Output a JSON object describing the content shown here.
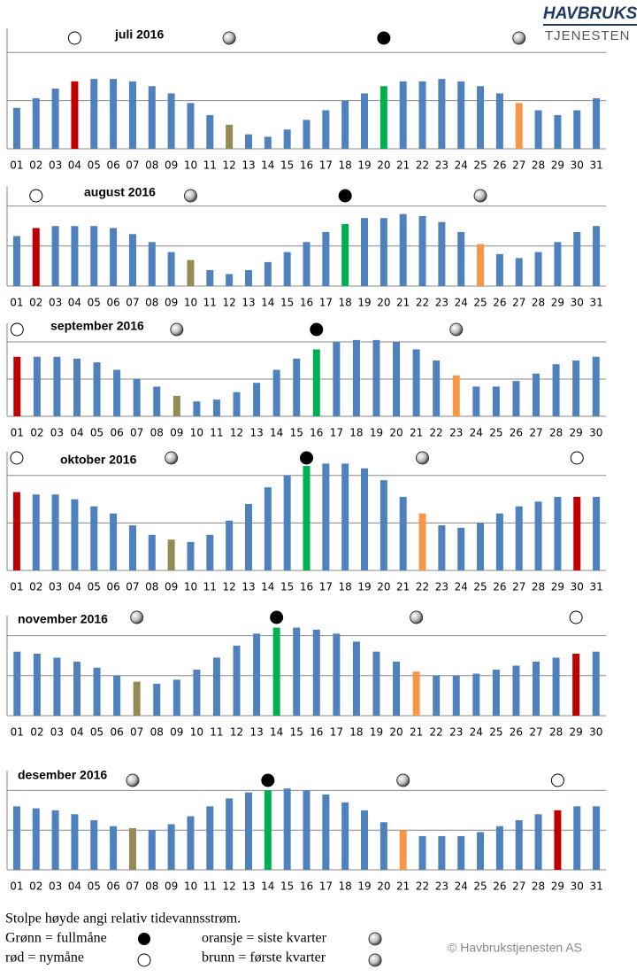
{
  "logo": [
    "HAVBRUKS",
    "TJENESTEN"
  ],
  "copyright": "© Havbrukstjenesten AS",
  "legend": {
    "note": "Stolpe høyde angi relativ tidevannsstrøm.",
    "items": [
      "Grønn = fullmåne",
      "rød = nymåne",
      "oransje = siste kvarter",
      "brunn = første kvarter"
    ]
  },
  "chart_data": [
    {
      "type": "bar",
      "title": "juli 2016",
      "categories": [
        "01",
        "02",
        "03",
        "04",
        "05",
        "06",
        "07",
        "08",
        "09",
        "10",
        "11",
        "12",
        "13",
        "14",
        "15",
        "16",
        "17",
        "18",
        "19",
        "20",
        "21",
        "22",
        "23",
        "24",
        "25",
        "26",
        "27",
        "28",
        "29",
        "30",
        "31"
      ],
      "values": [
        0.85,
        1.05,
        1.25,
        1.4,
        1.45,
        1.45,
        1.4,
        1.3,
        1.15,
        0.95,
        0.7,
        0.5,
        0.3,
        0.25,
        0.4,
        0.6,
        0.8,
        1.0,
        1.15,
        1.3,
        1.4,
        1.4,
        1.45,
        1.4,
        1.3,
        1.15,
        0.95,
        0.8,
        0.7,
        0.8,
        1.05
      ],
      "colors": [
        "#4f81bd",
        "#4f81bd",
        "#4f81bd",
        "#c00000",
        "#4f81bd",
        "#4f81bd",
        "#4f81bd",
        "#4f81bd",
        "#4f81bd",
        "#4f81bd",
        "#4f81bd",
        "#948a54",
        "#4f81bd",
        "#4f81bd",
        "#4f81bd",
        "#4f81bd",
        "#4f81bd",
        "#4f81bd",
        "#4f81bd",
        "#00b050",
        "#4f81bd",
        "#4f81bd",
        "#4f81bd",
        "#4f81bd",
        "#4f81bd",
        "#4f81bd",
        "#f79646",
        "#4f81bd",
        "#4f81bd",
        "#4f81bd",
        "#4f81bd"
      ],
      "ylim": [
        0,
        2.5
      ],
      "yticks": [
        0,
        1,
        2
      ],
      "grid": true
    },
    {
      "type": "bar",
      "title": "august 2016",
      "categories": [
        "01",
        "02",
        "03",
        "04",
        "05",
        "06",
        "07",
        "08",
        "09",
        "10",
        "11",
        "12",
        "13",
        "14",
        "15",
        "16",
        "17",
        "18",
        "19",
        "20",
        "21",
        "22",
        "23",
        "24",
        "25",
        "26",
        "27",
        "28",
        "29",
        "30",
        "31"
      ],
      "values": [
        1.25,
        1.45,
        1.5,
        1.5,
        1.5,
        1.45,
        1.3,
        1.1,
        0.85,
        0.65,
        0.4,
        0.3,
        0.4,
        0.6,
        0.85,
        1.1,
        1.35,
        1.55,
        1.7,
        1.7,
        1.8,
        1.75,
        1.6,
        1.35,
        1.05,
        0.8,
        0.7,
        0.85,
        1.1,
        1.35,
        1.5
      ],
      "colors": [
        "#4f81bd",
        "#c00000",
        "#4f81bd",
        "#4f81bd",
        "#4f81bd",
        "#4f81bd",
        "#4f81bd",
        "#4f81bd",
        "#4f81bd",
        "#948a54",
        "#4f81bd",
        "#4f81bd",
        "#4f81bd",
        "#4f81bd",
        "#4f81bd",
        "#4f81bd",
        "#4f81bd",
        "#00b050",
        "#4f81bd",
        "#4f81bd",
        "#4f81bd",
        "#4f81bd",
        "#4f81bd",
        "#4f81bd",
        "#f79646",
        "#4f81bd",
        "#4f81bd",
        "#4f81bd",
        "#4f81bd",
        "#4f81bd",
        "#4f81bd"
      ],
      "ylim": [
        0,
        2.5
      ],
      "yticks": [
        0,
        1,
        2
      ],
      "grid": true
    },
    {
      "type": "bar",
      "title": "september 2016",
      "categories": [
        "01",
        "02",
        "03",
        "04",
        "05",
        "06",
        "07",
        "08",
        "09",
        "10",
        "11",
        "12",
        "13",
        "14",
        "15",
        "16",
        "17",
        "18",
        "19",
        "20",
        "21",
        "22",
        "23",
        "24",
        "25",
        "26",
        "27",
        "28",
        "29",
        "30"
      ],
      "values": [
        1.6,
        1.6,
        1.6,
        1.55,
        1.45,
        1.25,
        1.0,
        0.8,
        0.55,
        0.4,
        0.45,
        0.65,
        0.9,
        1.25,
        1.55,
        1.8,
        2.0,
        2.05,
        2.05,
        2.0,
        1.8,
        1.5,
        1.1,
        0.8,
        0.8,
        0.95,
        1.15,
        1.4,
        1.5,
        1.6
      ],
      "colors": [
        "#c00000",
        "#4f81bd",
        "#4f81bd",
        "#4f81bd",
        "#4f81bd",
        "#4f81bd",
        "#4f81bd",
        "#4f81bd",
        "#948a54",
        "#4f81bd",
        "#4f81bd",
        "#4f81bd",
        "#4f81bd",
        "#4f81bd",
        "#4f81bd",
        "#00b050",
        "#4f81bd",
        "#4f81bd",
        "#4f81bd",
        "#4f81bd",
        "#4f81bd",
        "#4f81bd",
        "#f79646",
        "#4f81bd",
        "#4f81bd",
        "#4f81bd",
        "#4f81bd",
        "#4f81bd",
        "#4f81bd",
        "#4f81bd"
      ],
      "ylim": [
        0,
        2.5
      ],
      "yticks": [
        0,
        1,
        2
      ],
      "grid": true
    },
    {
      "type": "bar",
      "title": "oktober 2016",
      "categories": [
        "01",
        "02",
        "03",
        "04",
        "05",
        "06",
        "07",
        "08",
        "09",
        "10",
        "11",
        "12",
        "13",
        "14",
        "15",
        "16",
        "17",
        "18",
        "19",
        "20",
        "21",
        "22",
        "23",
        "24",
        "25",
        "26",
        "27",
        "28",
        "29",
        "30",
        "31"
      ],
      "values": [
        1.65,
        1.6,
        1.6,
        1.5,
        1.35,
        1.2,
        0.95,
        0.75,
        0.65,
        0.6,
        0.75,
        1.05,
        1.4,
        1.75,
        2.0,
        2.2,
        2.25,
        2.25,
        2.15,
        1.9,
        1.55,
        1.2,
        0.95,
        0.9,
        1.0,
        1.2,
        1.35,
        1.45,
        1.55,
        1.55,
        1.55
      ],
      "colors": [
        "#c00000",
        "#4f81bd",
        "#4f81bd",
        "#4f81bd",
        "#4f81bd",
        "#4f81bd",
        "#4f81bd",
        "#4f81bd",
        "#948a54",
        "#4f81bd",
        "#4f81bd",
        "#4f81bd",
        "#4f81bd",
        "#4f81bd",
        "#4f81bd",
        "#00b050",
        "#4f81bd",
        "#4f81bd",
        "#4f81bd",
        "#4f81bd",
        "#4f81bd",
        "#f79646",
        "#4f81bd",
        "#4f81bd",
        "#4f81bd",
        "#4f81bd",
        "#4f81bd",
        "#4f81bd",
        "#4f81bd",
        "#c00000",
        "#4f81bd"
      ],
      "ylim": [
        0,
        2.5
      ],
      "yticks": [
        0,
        1,
        2
      ],
      "grid": true
    },
    {
      "type": "bar",
      "title": "november 2016",
      "categories": [
        "01",
        "02",
        "03",
        "04",
        "05",
        "06",
        "07",
        "08",
        "09",
        "10",
        "11",
        "12",
        "13",
        "14",
        "15",
        "16",
        "17",
        "18",
        "19",
        "20",
        "21",
        "22",
        "23",
        "24",
        "25",
        "26",
        "27",
        "28",
        "29",
        "30"
      ],
      "values": [
        1.6,
        1.55,
        1.45,
        1.35,
        1.2,
        1.0,
        0.85,
        0.8,
        0.9,
        1.15,
        1.45,
        1.75,
        2.05,
        2.2,
        2.2,
        2.15,
        2.05,
        1.85,
        1.6,
        1.35,
        1.1,
        1.0,
        1.0,
        1.05,
        1.15,
        1.25,
        1.35,
        1.45,
        1.55,
        1.6
      ],
      "colors": [
        "#4f81bd",
        "#4f81bd",
        "#4f81bd",
        "#4f81bd",
        "#4f81bd",
        "#4f81bd",
        "#948a54",
        "#4f81bd",
        "#4f81bd",
        "#4f81bd",
        "#4f81bd",
        "#4f81bd",
        "#4f81bd",
        "#00b050",
        "#4f81bd",
        "#4f81bd",
        "#4f81bd",
        "#4f81bd",
        "#4f81bd",
        "#4f81bd",
        "#f79646",
        "#4f81bd",
        "#4f81bd",
        "#4f81bd",
        "#4f81bd",
        "#4f81bd",
        "#4f81bd",
        "#4f81bd",
        "#c00000",
        "#4f81bd"
      ],
      "ylim": [
        0,
        2.5
      ],
      "yticks": [
        0,
        1,
        2
      ],
      "grid": true
    },
    {
      "type": "bar",
      "title": "desember 2016",
      "categories": [
        "01",
        "02",
        "03",
        "04",
        "05",
        "06",
        "07",
        "08",
        "09",
        "10",
        "11",
        "12",
        "13",
        "14",
        "15",
        "16",
        "17",
        "18",
        "19",
        "20",
        "21",
        "22",
        "23",
        "24",
        "25",
        "26",
        "27",
        "28",
        "29",
        "30",
        "31"
      ],
      "values": [
        1.6,
        1.55,
        1.5,
        1.4,
        1.25,
        1.1,
        1.05,
        1.0,
        1.15,
        1.35,
        1.6,
        1.8,
        1.95,
        2.0,
        2.05,
        2.0,
        1.9,
        1.7,
        1.5,
        1.2,
        1.0,
        0.85,
        0.85,
        0.85,
        0.95,
        1.1,
        1.25,
        1.4,
        1.5,
        1.6,
        1.6
      ],
      "colors": [
        "#4f81bd",
        "#4f81bd",
        "#4f81bd",
        "#4f81bd",
        "#4f81bd",
        "#4f81bd",
        "#948a54",
        "#4f81bd",
        "#4f81bd",
        "#4f81bd",
        "#4f81bd",
        "#4f81bd",
        "#4f81bd",
        "#00b050",
        "#4f81bd",
        "#4f81bd",
        "#4f81bd",
        "#4f81bd",
        "#4f81bd",
        "#4f81bd",
        "#f79646",
        "#4f81bd",
        "#4f81bd",
        "#4f81bd",
        "#4f81bd",
        "#4f81bd",
        "#4f81bd",
        "#4f81bd",
        "#c00000",
        "#4f81bd",
        "#4f81bd"
      ],
      "ylim": [
        0,
        2.5
      ],
      "yticks": [
        0,
        1,
        2
      ],
      "grid": true
    }
  ]
}
